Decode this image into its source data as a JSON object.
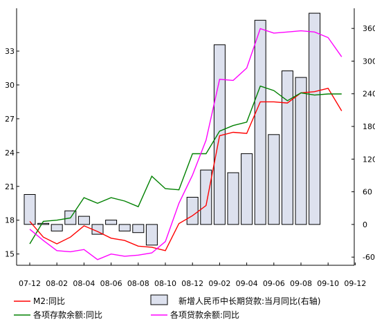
{
  "chart_data": {
    "type": "bar+line",
    "title": "",
    "xlabel": "",
    "x_tick_labels": [
      "07-12",
      "08-02",
      "08-04",
      "08-06",
      "08-08",
      "08-10",
      "08-12",
      "09-02",
      "09-04",
      "09-06",
      "09-08",
      "09-10",
      "09-12"
    ],
    "left_axis": {
      "ticks": [
        15,
        18,
        21,
        24,
        27,
        30,
        33
      ],
      "ylim": [
        14,
        36.8
      ]
    },
    "right_axis": {
      "ticks": [
        -60,
        0,
        60,
        120,
        180,
        240,
        300,
        360
      ],
      "ylim": [
        -75,
        397
      ]
    },
    "series": [
      {
        "name": "M2:同比",
        "type": "line",
        "axis": "left",
        "color": "#ff0000",
        "values": [
          17.9,
          16.5,
          15.9,
          16.5,
          17.5,
          17.0,
          16.4,
          16.2,
          15.7,
          15.6,
          15.3,
          17.7,
          18.4,
          19.3,
          25.5,
          25.8,
          25.7,
          28.5,
          28.5,
          28.4,
          29.3,
          29.4,
          29.7,
          27.7
        ],
        "color_role": "red"
      },
      {
        "name": "各项存款余额:同比",
        "type": "line",
        "axis": "left",
        "color": "#008000",
        "values": [
          15.9,
          17.9,
          18.0,
          18.2,
          20.0,
          19.5,
          20.0,
          19.7,
          19.2,
          21.9,
          20.8,
          20.7,
          23.9,
          23.9,
          25.9,
          26.4,
          26.7,
          29.9,
          29.5,
          28.6,
          29.3,
          29.1,
          29.2,
          29.2
        ],
        "color_role": "green"
      },
      {
        "name": "各项贷款余额:同比",
        "type": "line",
        "axis": "left",
        "color": "#ff00ff",
        "values": [
          17.2,
          16.2,
          15.3,
          15.2,
          15.4,
          14.5,
          15.0,
          14.8,
          14.9,
          15.1,
          16.1,
          19.5,
          22.0,
          25.1,
          30.5,
          30.4,
          31.5,
          35.0,
          34.6,
          34.7,
          34.8,
          34.7,
          34.2,
          32.5
        ],
        "color_role": "magenta"
      },
      {
        "name": "新增人民币中长期贷款:当月同比(右轴)",
        "type": "bar",
        "axis": "right",
        "color": "#dde1ee",
        "values": [
          55,
          2,
          -12,
          25,
          15,
          -18,
          8,
          -12,
          -15,
          -38,
          null,
          null,
          50,
          100,
          330,
          95,
          130,
          375,
          165,
          282,
          270,
          388,
          null,
          null
        ]
      }
    ],
    "legend": {
      "placement": "bottom",
      "entries": [
        "M2:同比",
        "新增人民币中长期贷款:当月同比(右轴)",
        "各项存款余额:同比",
        "各项贷款余额:同比"
      ]
    },
    "grid": false
  },
  "colors": {
    "axis": "#000000",
    "bar_fill": "#dde1ee",
    "bar_stroke": "#000000"
  }
}
